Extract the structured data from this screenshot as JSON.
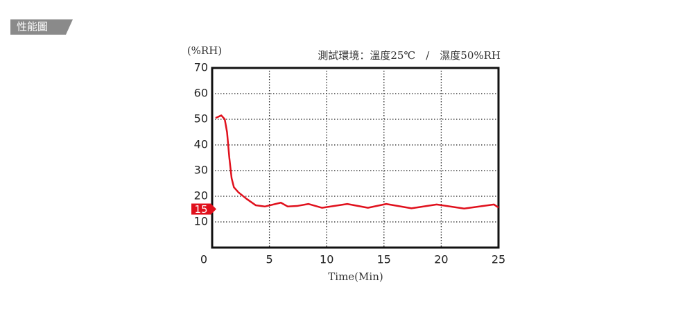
{
  "section_label": "性能圖",
  "chart_data": {
    "type": "line",
    "title": "測試環境：溫度25℃　/　濕度50%RH",
    "ylabel": "(%RH)",
    "xlabel": "Time(Min)",
    "x": [
      0.3,
      0.8,
      1.1,
      1.3,
      1.5,
      1.7,
      1.9,
      2.3,
      3.0,
      3.8,
      4.6,
      6.0,
      6.6,
      7.4,
      8.4,
      9.6,
      11.8,
      13.6,
      15.2,
      17.4,
      19.6,
      22.0,
      24.6,
      25.0
    ],
    "values": [
      50.5,
      51.5,
      50.0,
      45.0,
      35.0,
      27.0,
      23.5,
      21.5,
      19.0,
      16.5,
      16.0,
      17.5,
      16.0,
      16.2,
      17.0,
      15.5,
      17.0,
      15.5,
      17.0,
      15.3,
      16.8,
      15.2,
      16.8,
      15.6
    ],
    "color": "#e0101c",
    "xlim": [
      0,
      25
    ],
    "ylim": [
      0,
      70
    ],
    "xticks": [
      0,
      5,
      10,
      15,
      20,
      25
    ],
    "yticks": [
      10,
      20,
      30,
      40,
      50,
      60,
      70
    ],
    "grid": true,
    "reference": 15
  }
}
